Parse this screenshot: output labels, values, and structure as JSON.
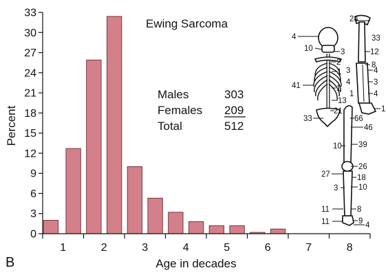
{
  "chart_data": {
    "type": "bar",
    "title": "Ewing Sarcoma",
    "xlabel": "Age in decades",
    "ylabel": "Percent",
    "ylim": [
      0,
      33
    ],
    "yticks": [
      0,
      3,
      6,
      9,
      12,
      15,
      18,
      21,
      24,
      27,
      30,
      33
    ],
    "xlim": [
      0.5,
      8.5
    ],
    "xticks": [
      1,
      2,
      3,
      4,
      5,
      6,
      7,
      8
    ],
    "bar_width": 0.36,
    "bar_color": "#d4808a",
    "bars": [
      {
        "x": 0.7,
        "value": 2.0
      },
      {
        "x": 1.25,
        "value": 12.7
      },
      {
        "x": 1.75,
        "value": 25.9
      },
      {
        "x": 2.25,
        "value": 32.4
      },
      {
        "x": 2.75,
        "value": 10.0
      },
      {
        "x": 3.25,
        "value": 5.3
      },
      {
        "x": 3.75,
        "value": 3.2
      },
      {
        "x": 4.25,
        "value": 1.8
      },
      {
        "x": 4.75,
        "value": 1.2
      },
      {
        "x": 5.25,
        "value": 1.2
      },
      {
        "x": 5.75,
        "value": 0.2
      },
      {
        "x": 6.25,
        "value": 0.7
      }
    ],
    "annotations": {
      "rows": [
        {
          "label": "Males",
          "value": "303"
        },
        {
          "label": "Females",
          "value": "209"
        },
        {
          "label": "Total",
          "value": "512"
        }
      ]
    },
    "panel_letter": "B"
  },
  "skeleton_labels": [
    "24",
    "4",
    "33",
    "10",
    "3",
    "12",
    "2",
    "8",
    "1",
    "3",
    "4",
    "4",
    "3",
    "41",
    "1",
    "1",
    "4",
    "13",
    "1",
    "21",
    "33",
    "66",
    "46",
    "10",
    "39",
    "26",
    "27",
    "18",
    "3",
    "10",
    "11",
    "8",
    "11",
    "9",
    "4"
  ]
}
